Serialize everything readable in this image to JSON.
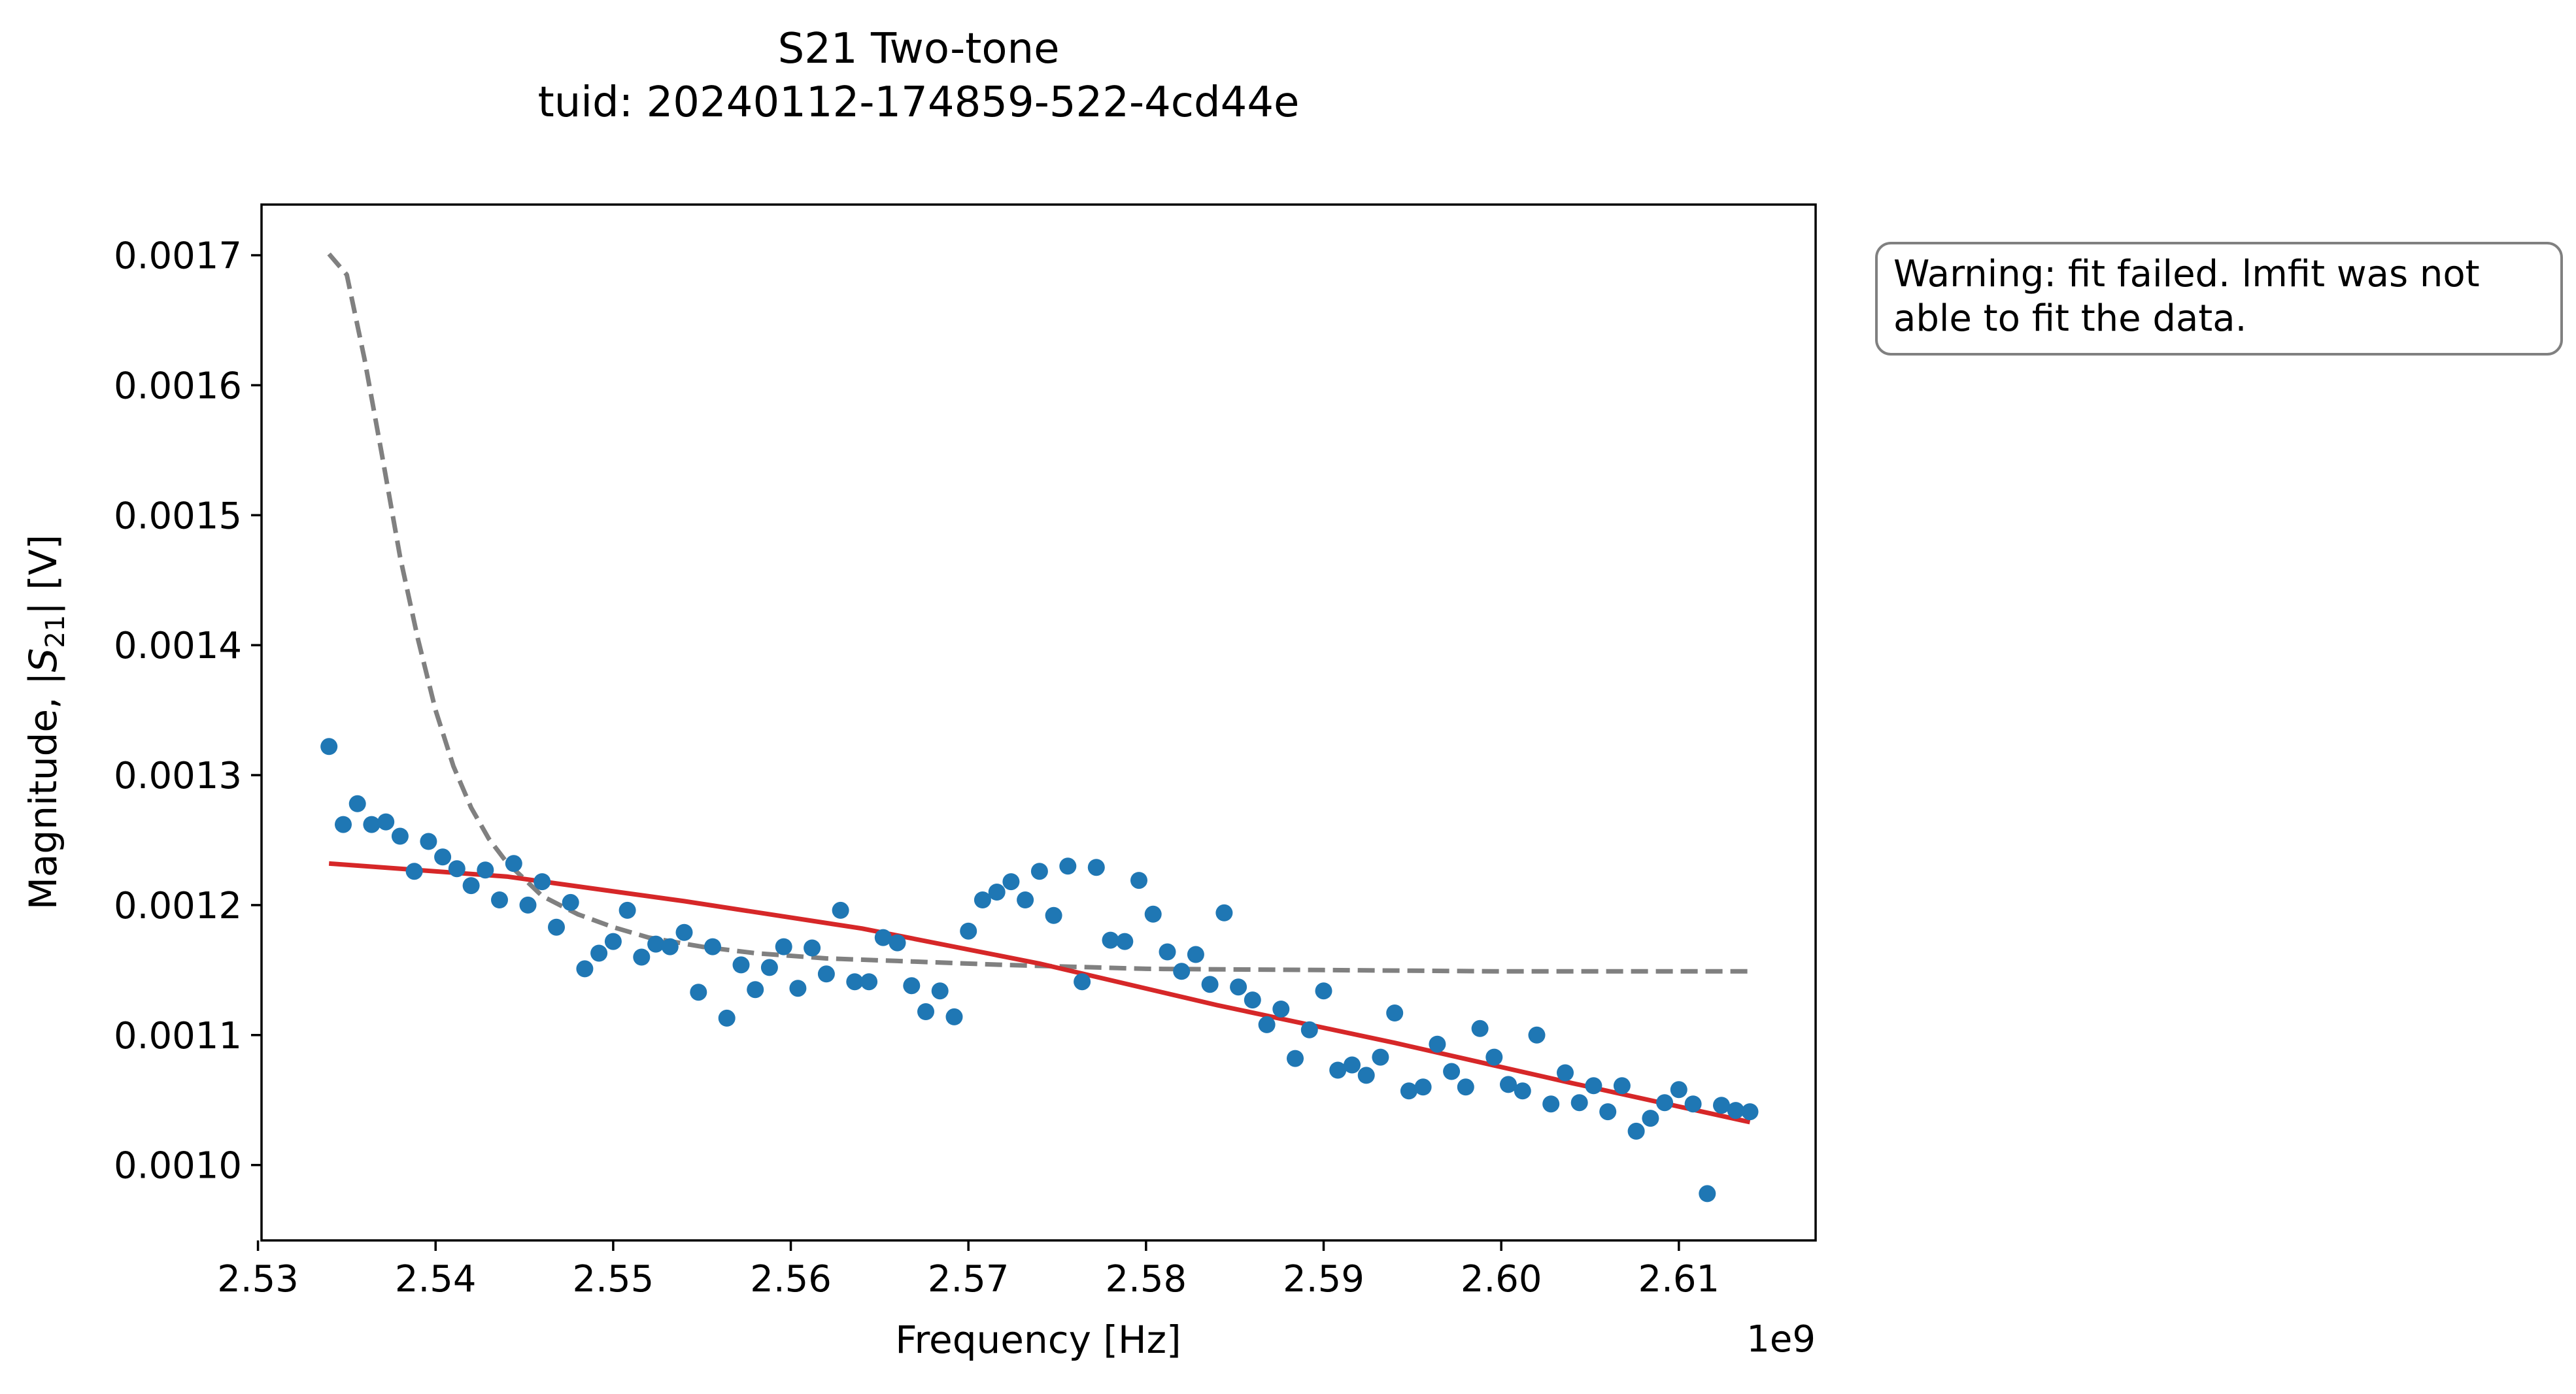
{
  "chart_data": {
    "type": "scatter",
    "title_line1": "S21 Two-tone",
    "title_line2": "tuid: 20240112-174859-522-4cd44e",
    "xlabel": "Frequency [Hz]",
    "ylabel_prefix": "Magnitude, |",
    "ylabel_sym": "S",
    "ylabel_sub": "21",
    "ylabel_suffix": "| [V]",
    "x_offset_label": "1e9",
    "xlim": [
      2.5302,
      2.6177
    ],
    "ylim": [
      0.000942,
      0.001739
    ],
    "xticks": [
      2.53,
      2.54,
      2.55,
      2.56,
      2.57,
      2.58,
      2.59,
      2.6,
      2.61
    ],
    "xtick_labels": [
      "2.53",
      "2.54",
      "2.55",
      "2.56",
      "2.57",
      "2.58",
      "2.59",
      "2.60",
      "2.61"
    ],
    "yticks": [
      0.001,
      0.0011,
      0.0012,
      0.0013,
      0.0014,
      0.0015,
      0.0016,
      0.0017
    ],
    "ytick_labels": [
      "0.0010",
      "0.0011",
      "0.0012",
      "0.0013",
      "0.0014",
      "0.0015",
      "0.0016",
      "0.0017"
    ],
    "colors": {
      "data": "#1f77b4",
      "fit": "#d62728",
      "guess": "#808080"
    },
    "series": [
      {
        "role": "data",
        "style": "points",
        "x": [
          2.534,
          2.5348,
          2.5356,
          2.5364,
          2.5372,
          2.538,
          2.5388,
          2.5396,
          2.5404,
          2.5412,
          2.542,
          2.5428,
          2.5436,
          2.5444,
          2.5452,
          2.546,
          2.5468,
          2.5476,
          2.5484,
          2.5492,
          2.55,
          2.5508,
          2.5516,
          2.5524,
          2.5532,
          2.554,
          2.5548,
          2.5556,
          2.5564,
          2.5572,
          2.558,
          2.5588,
          2.5596,
          2.5604,
          2.5612,
          2.562,
          2.5628,
          2.5636,
          2.5644,
          2.5652,
          2.566,
          2.5668,
          2.5676,
          2.5684,
          2.5692,
          2.57,
          2.5708,
          2.5716,
          2.5724,
          2.5732,
          2.574,
          2.5748,
          2.5756,
          2.5764,
          2.5772,
          2.578,
          2.5788,
          2.5796,
          2.5804,
          2.5812,
          2.582,
          2.5828,
          2.5836,
          2.5844,
          2.5852,
          2.586,
          2.5868,
          2.5876,
          2.5884,
          2.5892,
          2.59,
          2.5908,
          2.5916,
          2.5924,
          2.5932,
          2.594,
          2.5948,
          2.5956,
          2.5964,
          2.5972,
          2.598,
          2.5988,
          2.5996,
          2.6004,
          2.6012,
          2.602,
          2.6028,
          2.6036,
          2.6044,
          2.6052,
          2.606,
          2.6068,
          2.6076,
          2.6084,
          2.6092,
          2.61,
          2.6108,
          2.6116,
          2.6124,
          2.6132,
          2.614
        ],
        "y": [
          0.001322,
          0.001262,
          0.001278,
          0.001262,
          0.001264,
          0.001253,
          0.001226,
          0.001249,
          0.001237,
          0.001228,
          0.001215,
          0.001227,
          0.001204,
          0.001232,
          0.0012,
          0.001218,
          0.001183,
          0.001202,
          0.001151,
          0.001163,
          0.001172,
          0.001196,
          0.00116,
          0.00117,
          0.001168,
          0.001179,
          0.001133,
          0.001168,
          0.001113,
          0.001154,
          0.001135,
          0.001152,
          0.001168,
          0.001136,
          0.001167,
          0.001147,
          0.001196,
          0.001141,
          0.001141,
          0.001175,
          0.001171,
          0.001138,
          0.001118,
          0.001134,
          0.001114,
          0.00118,
          0.001204,
          0.00121,
          0.001218,
          0.001204,
          0.001226,
          0.001192,
          0.00123,
          0.001141,
          0.001229,
          0.001173,
          0.001172,
          0.001219,
          0.001193,
          0.001164,
          0.001149,
          0.001162,
          0.001139,
          0.001194,
          0.001137,
          0.001127,
          0.001108,
          0.00112,
          0.001082,
          0.001104,
          0.001134,
          0.001073,
          0.001077,
          0.001069,
          0.001083,
          0.001117,
          0.001057,
          0.00106,
          0.001093,
          0.001072,
          0.00106,
          0.001105,
          0.001083,
          0.001062,
          0.001057,
          0.0011,
          0.001047,
          0.001071,
          0.001048,
          0.001061,
          0.001041,
          0.001061,
          0.001026,
          0.001036,
          0.001048,
          0.001058,
          0.001047,
          0.000978,
          0.001046,
          0.001042,
          0.001041
        ]
      },
      {
        "role": "fit",
        "style": "solid",
        "x": [
          2.534,
          2.544,
          2.554,
          2.564,
          2.574,
          2.584,
          2.594,
          2.604,
          2.614
        ],
        "y": [
          0.001232,
          0.001222,
          0.001203,
          0.001182,
          0.001155,
          0.001123,
          0.001094,
          0.001063,
          0.001033
        ]
      },
      {
        "role": "guess",
        "style": "dashed",
        "x": [
          2.534,
          2.535,
          2.536,
          2.537,
          2.538,
          2.539,
          2.54,
          2.541,
          2.542,
          2.543,
          2.544,
          2.545,
          2.546,
          2.548,
          2.55,
          2.552,
          2.555,
          2.558,
          2.562,
          2.566,
          2.572,
          2.58,
          2.59,
          2.6,
          2.614
        ],
        "y": [
          0.001701,
          0.001685,
          0.00162,
          0.001545,
          0.001468,
          0.001405,
          0.00135,
          0.001307,
          0.001275,
          0.001251,
          0.001233,
          0.00122,
          0.001207,
          0.001193,
          0.001183,
          0.001175,
          0.001168,
          0.001163,
          0.001159,
          0.001157,
          0.001154,
          0.001151,
          0.00115,
          0.001149,
          0.001149
        ]
      }
    ],
    "annotation": {
      "line1": "Warning: fit failed. lmfit was not",
      "line2": "able to fit the data."
    }
  }
}
